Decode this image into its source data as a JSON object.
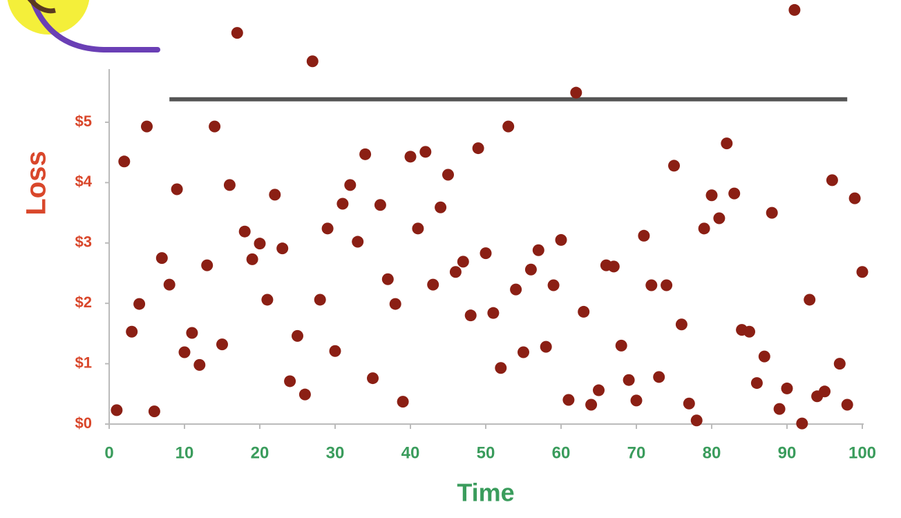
{
  "chart_data": {
    "type": "scatter",
    "x_label": "Time",
    "y_label": "Loss",
    "color": "#8b1f14",
    "xlim": [
      0,
      100
    ],
    "xticks": [
      0,
      10,
      20,
      30,
      40,
      50,
      60,
      70,
      80,
      90,
      100
    ],
    "ylim": [
      0,
      7
    ],
    "yticks": [
      {
        "value": 0,
        "label": "$0"
      },
      {
        "value": 1,
        "label": "$1"
      },
      {
        "value": 2,
        "label": "$2"
      },
      {
        "value": 3,
        "label": "$3"
      },
      {
        "value": 4,
        "label": "$4"
      },
      {
        "value": 5,
        "label": "$5"
      }
    ],
    "reference_line": {
      "y": 5.38,
      "x": [
        8,
        98
      ],
      "color": "#555555"
    },
    "x": [
      1,
      2,
      3,
      4,
      5,
      6,
      7,
      8,
      9,
      10,
      11,
      12,
      13,
      14,
      15,
      16,
      17,
      18,
      19,
      20,
      21,
      22,
      23,
      24,
      25,
      26,
      27,
      28,
      29,
      30,
      31,
      32,
      33,
      34,
      35,
      36,
      37,
      38,
      39,
      40,
      41,
      42,
      43,
      44,
      45,
      46,
      47,
      48,
      49,
      50,
      51,
      52,
      53,
      54,
      55,
      56,
      57,
      58,
      59,
      60,
      61,
      62,
      63,
      64,
      65,
      66,
      67,
      68,
      69,
      70,
      71,
      72,
      73,
      74,
      75,
      76,
      77,
      78,
      79,
      80,
      81,
      82,
      83,
      84,
      85,
      86,
      87,
      88,
      89,
      90,
      91,
      92,
      93,
      94,
      95,
      96,
      97,
      98,
      99,
      100
    ],
    "values": [
      0.23,
      4.35,
      1.53,
      1.99,
      4.93,
      0.21,
      2.75,
      2.31,
      3.89,
      1.19,
      1.51,
      0.98,
      2.63,
      4.93,
      1.32,
      3.96,
      6.48,
      3.19,
      2.73,
      2.99,
      2.06,
      3.8,
      2.91,
      0.71,
      1.46,
      0.49,
      6.01,
      2.06,
      3.24,
      1.21,
      3.65,
      3.96,
      3.02,
      4.47,
      0.76,
      3.63,
      2.4,
      1.99,
      0.37,
      4.43,
      3.24,
      4.51,
      2.31,
      3.59,
      4.13,
      2.52,
      2.69,
      1.8,
      4.57,
      2.83,
      1.84,
      0.93,
      4.93,
      2.23,
      1.19,
      2.56,
      2.88,
      1.28,
      2.3,
      3.05,
      0.4,
      5.49,
      1.86,
      0.32,
      0.56,
      2.63,
      2.61,
      1.3,
      0.73,
      0.39,
      3.12,
      2.3,
      0.78,
      2.3,
      4.28,
      1.65,
      0.34,
      0.06,
      3.24,
      3.79,
      3.41,
      4.65,
      3.82,
      1.56,
      1.53,
      0.68,
      1.12,
      3.5,
      0.25,
      0.59,
      6.86,
      0.01,
      2.06,
      0.46,
      0.54,
      4.04,
      1.0,
      0.32,
      3.74,
      2.52
    ]
  }
}
